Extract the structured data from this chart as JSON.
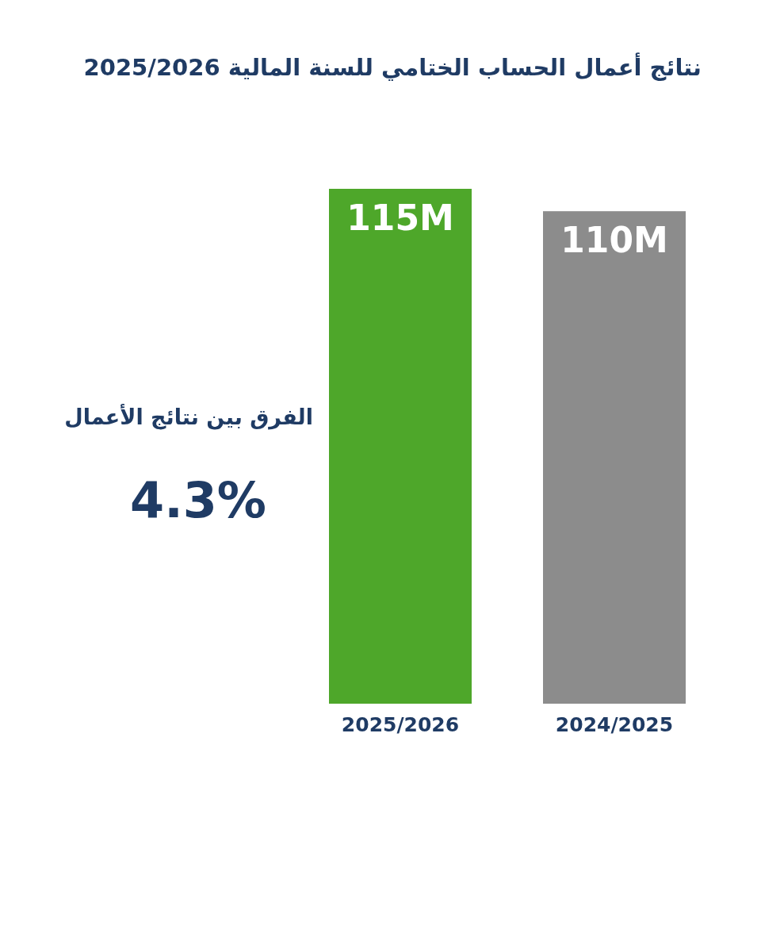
{
  "chart_data": {
    "type": "bar",
    "title": "نتائج أعمال الحساب الختامي للسنة المالية 2025/2026",
    "categories": [
      "2025/2026",
      "2024/2025"
    ],
    "values": [
      115,
      110
    ],
    "colors": [
      "#4ea72a",
      "#8c8c8c"
    ],
    "value_labels": [
      "115M",
      "110M"
    ],
    "annotations": [
      "الفرق بين نتائج الأعمال",
      "4.3%"
    ]
  }
}
